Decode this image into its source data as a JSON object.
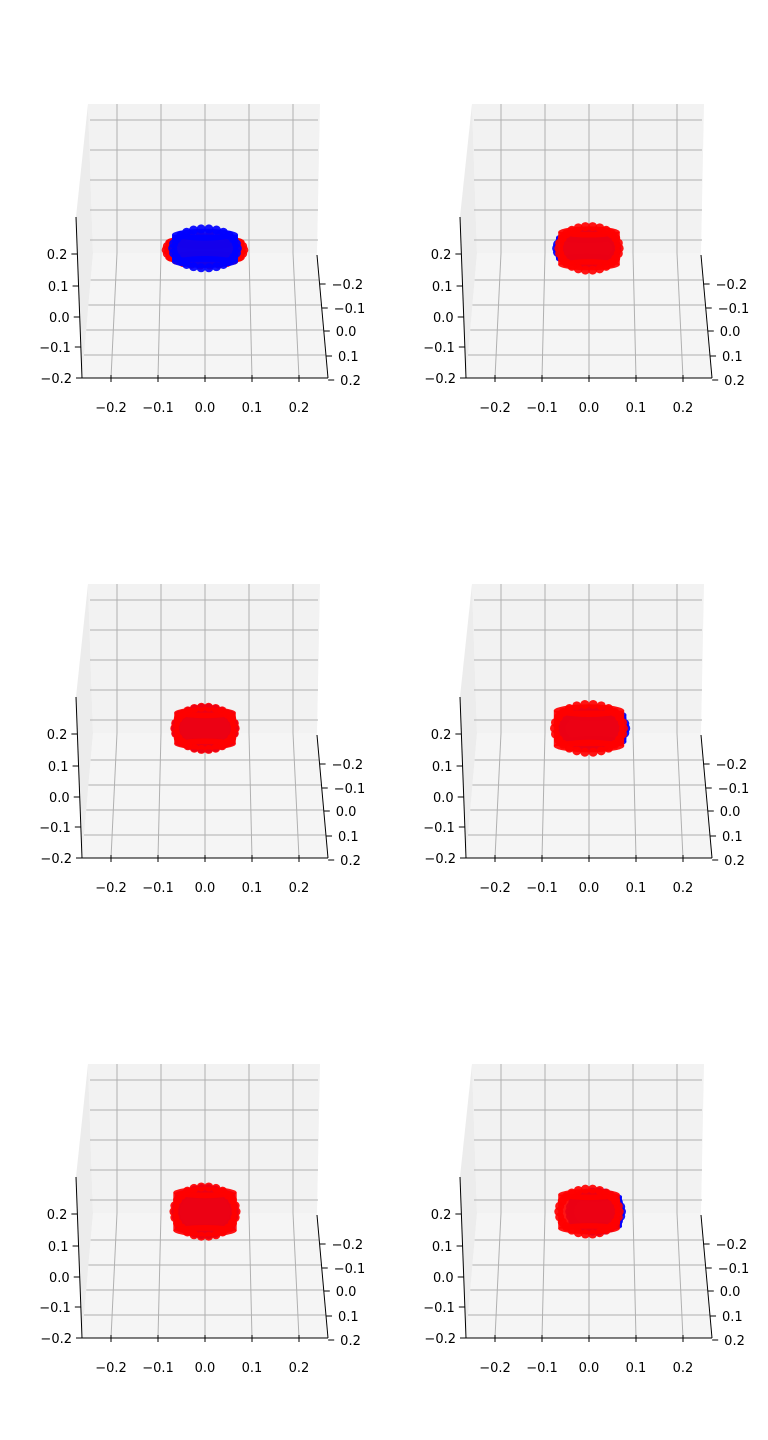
{
  "chart_data": [
    {
      "type": "scatter",
      "projection": "3d",
      "title": "",
      "xlabel": "",
      "ylabel": "",
      "zlabel": "",
      "xlim": [
        -0.25,
        0.25
      ],
      "ylim": [
        -0.25,
        0.25
      ],
      "zlim": [
        -0.2,
        0.25
      ],
      "x_ticks": [
        "−0.2",
        "−0.1",
        "0.0",
        "0.1",
        "0.2"
      ],
      "y_ticks": [
        "−0.2",
        "−0.1",
        "0.0",
        "0.1",
        "0.2"
      ],
      "z_ticks": [
        "−0.2",
        "−0.1",
        "0.0",
        "0.1",
        "0.2"
      ],
      "grid": true,
      "series": [
        {
          "color": "#ff0000",
          "shape": "cylinder",
          "center": [
            0,
            0,
            0.21
          ],
          "radius": 0.09,
          "height": 0.06,
          "layer": "back"
        },
        {
          "color": "#0000ff",
          "shape": "cylinder",
          "center": [
            0,
            0,
            0.215
          ],
          "radius": 0.075,
          "height": 0.1,
          "layer": "front"
        }
      ]
    },
    {
      "type": "scatter",
      "projection": "3d",
      "title": "",
      "xlabel": "",
      "ylabel": "",
      "zlabel": "",
      "xlim": [
        -0.25,
        0.25
      ],
      "ylim": [
        -0.25,
        0.25
      ],
      "zlim": [
        -0.2,
        0.25
      ],
      "x_ticks": [
        "−0.2",
        "−0.1",
        "0.0",
        "0.1",
        "0.2"
      ],
      "y_ticks": [
        "−0.2",
        "−0.1",
        "0.0",
        "0.1",
        "0.2"
      ],
      "z_ticks": [
        "−0.2",
        "−0.1",
        "0.0",
        "0.1",
        "0.2"
      ],
      "grid": true,
      "series": [
        {
          "color": "#0000ff",
          "shape": "cylinder",
          "center": [
            -0.005,
            0,
            0.215
          ],
          "radius": 0.07,
          "height": 0.08,
          "layer": "back"
        },
        {
          "color": "#ff0000",
          "shape": "cylinder",
          "center": [
            0,
            0,
            0.215
          ],
          "radius": 0.07,
          "height": 0.12,
          "layer": "front"
        }
      ]
    },
    {
      "type": "scatter",
      "projection": "3d",
      "title": "",
      "xlabel": "",
      "ylabel": "",
      "zlabel": "",
      "xlim": [
        -0.25,
        0.25
      ],
      "ylim": [
        -0.25,
        0.25
      ],
      "zlim": [
        -0.2,
        0.25
      ],
      "x_ticks": [
        "−0.2",
        "−0.1",
        "0.0",
        "0.1",
        "0.2"
      ],
      "y_ticks": [
        "−0.2",
        "−0.1",
        "0.0",
        "0.1",
        "0.2"
      ],
      "z_ticks": [
        "−0.2",
        "−0.1",
        "0.0",
        "0.1",
        "0.2"
      ],
      "grid": true,
      "series": [
        {
          "color": "#0000ff",
          "shape": "cylinder",
          "center": [
            0,
            0,
            0.215
          ],
          "radius": 0.068,
          "height": 0.11,
          "layer": "back"
        },
        {
          "color": "#ff0000",
          "shape": "cylinder",
          "center": [
            0,
            0,
            0.215
          ],
          "radius": 0.07,
          "height": 0.115,
          "layer": "front"
        }
      ]
    },
    {
      "type": "scatter",
      "projection": "3d",
      "title": "",
      "xlabel": "",
      "ylabel": "",
      "zlabel": "",
      "xlim": [
        -0.25,
        0.25
      ],
      "ylim": [
        -0.25,
        0.25
      ],
      "zlim": [
        -0.2,
        0.25
      ],
      "x_ticks": [
        "−0.2",
        "−0.1",
        "0.0",
        "0.1",
        "0.2"
      ],
      "y_ticks": [
        "−0.2",
        "−0.1",
        "0.0",
        "0.1",
        "0.2"
      ],
      "z_ticks": [
        "−0.2",
        "−0.1",
        "0.0",
        "0.1",
        "0.2"
      ],
      "grid": true,
      "series": [
        {
          "color": "#0000ff",
          "shape": "cylinder",
          "center": [
            0.01,
            0,
            0.215
          ],
          "radius": 0.075,
          "height": 0.1,
          "layer": "back"
        },
        {
          "color": "#ff0000",
          "shape": "cylinder",
          "center": [
            0,
            0,
            0.215
          ],
          "radius": 0.08,
          "height": 0.13,
          "layer": "front"
        }
      ]
    },
    {
      "type": "scatter",
      "projection": "3d",
      "title": "",
      "xlabel": "",
      "ylabel": "",
      "zlabel": "",
      "xlim": [
        -0.25,
        0.25
      ],
      "ylim": [
        -0.25,
        0.25
      ],
      "zlim": [
        -0.2,
        0.25
      ],
      "x_ticks": [
        "−0.2",
        "−0.1",
        "0.0",
        "0.1",
        "0.2"
      ],
      "y_ticks": [
        "−0.2",
        "−0.1",
        "0.0",
        "0.1",
        "0.2"
      ],
      "z_ticks": [
        "−0.2",
        "−0.1",
        "0.0",
        "0.1",
        "0.2"
      ],
      "grid": true,
      "series": [
        {
          "color": "#0000ff",
          "shape": "cylinder",
          "center": [
            0,
            0,
            0.205
          ],
          "radius": 0.068,
          "height": 0.13,
          "layer": "back"
        },
        {
          "color": "#ff0000",
          "shape": "cylinder",
          "center": [
            0,
            0,
            0.205
          ],
          "radius": 0.072,
          "height": 0.14,
          "layer": "front"
        }
      ]
    },
    {
      "type": "scatter",
      "projection": "3d",
      "title": "",
      "xlabel": "",
      "ylabel": "",
      "zlabel": "",
      "xlim": [
        -0.25,
        0.25
      ],
      "ylim": [
        -0.25,
        0.25
      ],
      "zlim": [
        -0.2,
        0.25
      ],
      "x_ticks": [
        "−0.2",
        "−0.1",
        "0.0",
        "0.1",
        "0.2"
      ],
      "y_ticks": [
        "−0.2",
        "−0.1",
        "0.0",
        "0.1",
        "0.2"
      ],
      "z_ticks": [
        "−0.2",
        "−0.1",
        "0.0",
        "0.1",
        "0.2"
      ],
      "grid": true,
      "series": [
        {
          "color": "#0000ff",
          "shape": "cylinder",
          "center": [
            0.015,
            0,
            0.205
          ],
          "radius": 0.06,
          "height": 0.11,
          "layer": "back"
        },
        {
          "color": "#ff0000",
          "shape": "cylinder",
          "center": [
            0,
            0,
            0.205
          ],
          "radius": 0.07,
          "height": 0.125,
          "layer": "front"
        }
      ]
    }
  ]
}
